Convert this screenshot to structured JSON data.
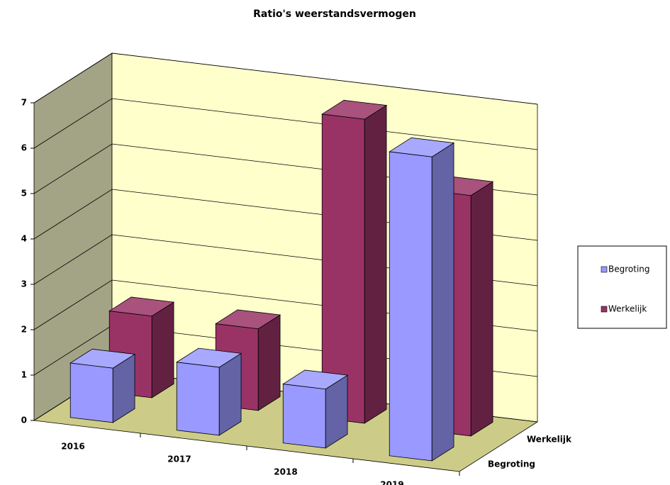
{
  "chart_data": {
    "type": "bar3d",
    "title": "Ratio's weerstandsvermogen",
    "categories": [
      "2016",
      "2017",
      "2018",
      "2019"
    ],
    "series": [
      {
        "name": "Begroting",
        "color": "#9999ff",
        "values": [
          1.2,
          1.5,
          1.3,
          6.7
        ]
      },
      {
        "name": "Werkelijk",
        "color": "#993366",
        "values": [
          1.8,
          1.8,
          6.7,
          5.3
        ]
      }
    ],
    "ylim": [
      0,
      7
    ],
    "yticks": [
      0,
      1,
      2,
      3,
      4,
      5,
      6,
      7
    ],
    "grid": true,
    "legend": "right"
  }
}
